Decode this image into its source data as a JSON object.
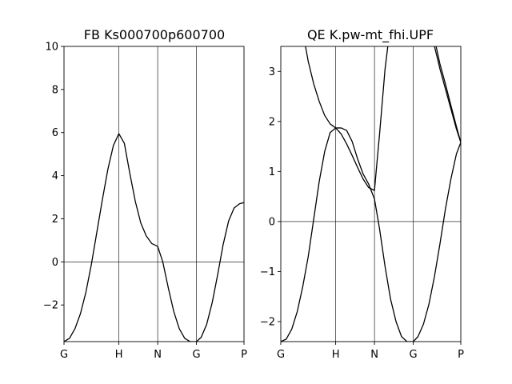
{
  "chart_data": [
    {
      "type": "line",
      "title": "FB Ks000700p600700",
      "xlabel": "",
      "ylabel": "",
      "k_labels": [
        "G",
        "H",
        "N",
        "G",
        "P"
      ],
      "k_positions": [
        0,
        1,
        1.7071,
        2.4142,
        3.2802
      ],
      "ylim": [
        -3.7,
        10
      ],
      "yticks": [
        -2,
        0,
        2,
        4,
        6,
        8,
        10
      ],
      "ytick_labels": [
        "−2",
        "0",
        "2",
        "4",
        "6",
        "8",
        "10"
      ],
      "hline": 0,
      "vlines": [
        1,
        1.7071,
        2.4142
      ],
      "grid": false,
      "line_color": "#000000",
      "series": [
        {
          "x": [
            0,
            0.1,
            0.2,
            0.3,
            0.4,
            0.5,
            0.6,
            0.7,
            0.8,
            0.9,
            1.0,
            1.1,
            1.2,
            1.3,
            1.4,
            1.5,
            1.6,
            1.7071,
            1.8,
            1.9,
            2.0,
            2.1,
            2.2,
            2.3,
            2.4142,
            2.5,
            2.6,
            2.7,
            2.8,
            2.9,
            3.0,
            3.1,
            3.2,
            3.2802
          ],
          "y": [
            -3.7,
            -3.55,
            -3.1,
            -2.4,
            -1.4,
            -0.1,
            1.4,
            2.9,
            4.3,
            5.4,
            5.95,
            5.5,
            4.1,
            2.8,
            1.8,
            1.2,
            0.85,
            0.72,
            0.0,
            -1.2,
            -2.3,
            -3.1,
            -3.55,
            -3.7,
            -3.7,
            -3.5,
            -2.9,
            -1.9,
            -0.6,
            0.8,
            1.9,
            2.5,
            2.7,
            2.75
          ]
        }
      ]
    },
    {
      "type": "line",
      "title": "QE K.pw-mt_fhi.UPF",
      "xlabel": "",
      "ylabel": "",
      "k_labels": [
        "G",
        "H",
        "N",
        "G",
        "P"
      ],
      "k_positions": [
        0,
        1,
        1.7071,
        2.4142,
        3.2802
      ],
      "ylim": [
        -2.4,
        3.5
      ],
      "yticks": [
        -2,
        -1,
        0,
        1,
        2,
        3
      ],
      "ytick_labels": [
        "−2",
        "−1",
        "0",
        "1",
        "2",
        "3"
      ],
      "hline": 0,
      "vlines": [
        1,
        1.7071,
        2.4142
      ],
      "grid": false,
      "line_color": "#000000",
      "series": [
        {
          "x": [
            0,
            0.1,
            0.2,
            0.3,
            0.4,
            0.5,
            0.6,
            0.7,
            0.8,
            0.9,
            1.0,
            1.1,
            1.2,
            1.3,
            1.4,
            1.5,
            1.6,
            1.7071,
            1.8,
            1.9,
            2.0,
            2.1,
            2.2,
            2.3,
            2.4142,
            2.5,
            2.6,
            2.7,
            2.8,
            2.9,
            3.0,
            3.1,
            3.2,
            3.2802
          ],
          "y": [
            -2.4,
            -2.35,
            -2.15,
            -1.8,
            -1.3,
            -0.7,
            0.05,
            0.8,
            1.4,
            1.78,
            1.87,
            1.87,
            1.82,
            1.6,
            1.25,
            0.95,
            0.75,
            0.45,
            -0.15,
            -0.9,
            -1.55,
            -2.0,
            -2.3,
            -2.4,
            -2.4,
            -2.3,
            -2.05,
            -1.65,
            -1.1,
            -0.45,
            0.25,
            0.85,
            1.35,
            1.58
          ]
        },
        {
          "x": [
            0.45,
            0.5,
            0.6,
            0.7,
            0.8,
            0.9,
            1.0,
            1.1,
            1.2,
            1.3,
            1.4,
            1.5,
            1.6,
            1.7071,
            1.75,
            1.8,
            1.85,
            1.9,
            1.95
          ],
          "y": [
            3.5,
            3.2,
            2.75,
            2.4,
            2.12,
            1.95,
            1.87,
            1.75,
            1.55,
            1.32,
            1.08,
            0.85,
            0.68,
            0.62,
            1.15,
            1.75,
            2.4,
            3.05,
            3.5
          ]
        },
        {
          "x": [
            2.8,
            2.85,
            2.9,
            3.0,
            3.1,
            3.2,
            3.2802
          ],
          "y": [
            3.5,
            3.28,
            3.05,
            2.65,
            2.25,
            1.85,
            1.58
          ]
        },
        {
          "x": [
            2.83,
            2.9,
            3.0,
            3.1,
            3.2,
            3.2802
          ],
          "y": [
            3.5,
            3.15,
            2.75,
            2.32,
            1.9,
            1.58
          ]
        }
      ]
    }
  ]
}
